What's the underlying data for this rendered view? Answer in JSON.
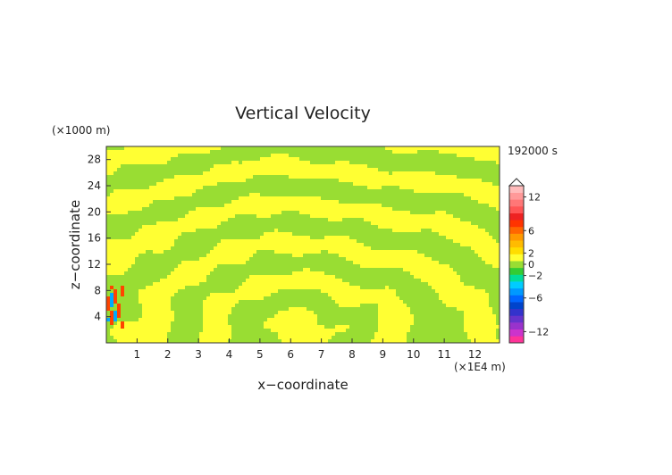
{
  "chart_data": {
    "type": "heatmap",
    "title": "Vertical Velocity",
    "xlabel": "x−coordinate",
    "ylabel": "z−coordinate",
    "x_unit": "(×1E4 m)",
    "y_unit": "(×1000 m)",
    "time_label": "192000 s",
    "xlim": [
      0,
      12.8
    ],
    "ylim": [
      0,
      30
    ],
    "x_ticks": [
      "1",
      "2",
      "3",
      "4",
      "5",
      "6",
      "7",
      "8",
      "9",
      "10",
      "11",
      "12"
    ],
    "y_ticks": [
      "4",
      "8",
      "12",
      "16",
      "20",
      "24",
      "28"
    ],
    "colorbar": {
      "tick_labels": [
        "12",
        "6",
        "2",
        "0",
        "−2",
        "−6",
        "−12"
      ],
      "colors": [
        "#ff3399",
        "#cc33cc",
        "#9933cc",
        "#6633cc",
        "#3333cc",
        "#0044cc",
        "#0066ff",
        "#0099ff",
        "#00ccff",
        "#00dd99",
        "#33cc33",
        "#99dd33",
        "#ffff33",
        "#ffdd00",
        "#ffbb00",
        "#ff9900",
        "#ff6600",
        "#ff3300",
        "#ee2222",
        "#ff5555",
        "#ff7777",
        "#ff9999",
        "#ffbbbb"
      ]
    },
    "field_colors": {
      "positive_small": "#ffff33",
      "negative_small": "#99dd33",
      "strong_positive": "#ff4400",
      "strong_negative": "#00aaff"
    }
  }
}
